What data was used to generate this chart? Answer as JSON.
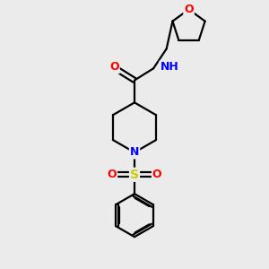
{
  "background_color": "#ebebeb",
  "bond_color": "#000000",
  "atom_colors": {
    "O": "#ff0000",
    "N": "#0000ff",
    "S": "#cccc00",
    "H": "#708090",
    "C": "#000000"
  }
}
